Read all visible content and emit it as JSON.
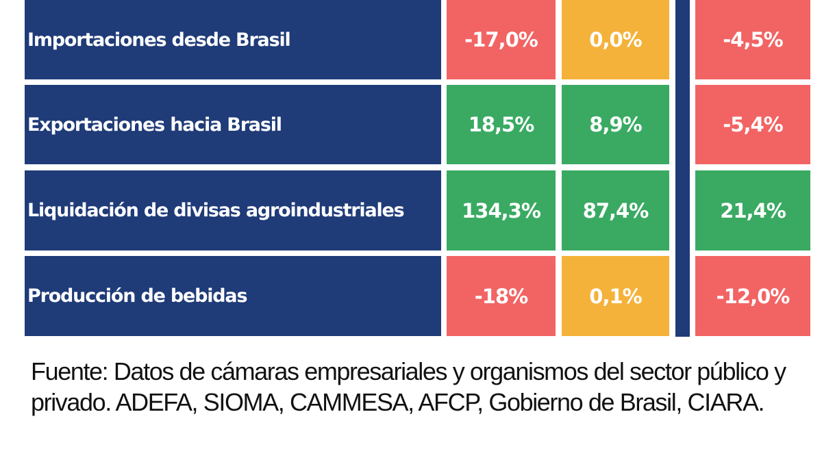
{
  "colors": {
    "row_label_bg": "#1f3b78",
    "separator": "#1f3b78",
    "positive": "#3aaa63",
    "neutral": "#f5b23a",
    "negative": "#f26464"
  },
  "chart_data": {
    "type": "table",
    "rows": [
      {
        "label": "Importaciones desde Brasil",
        "values": [
          "-17,0%",
          "0,0%",
          "-4,5%"
        ],
        "colors": [
          "negative",
          "neutral",
          "negative"
        ]
      },
      {
        "label": "Exportaciones hacia Brasil",
        "values": [
          "18,5%",
          "8,9%",
          "-5,4%"
        ],
        "colors": [
          "positive",
          "positive",
          "negative"
        ]
      },
      {
        "label": "Liquidación de divisas agroindustriales",
        "values": [
          "134,3%",
          "87,4%",
          "21,4%"
        ],
        "colors": [
          "positive",
          "positive",
          "positive"
        ]
      },
      {
        "label": "Producción de bebidas",
        "values": [
          "-18%",
          "0,1%",
          "-12,0%"
        ],
        "colors": [
          "negative",
          "neutral",
          "negative"
        ]
      }
    ]
  },
  "source_text": "Fuente: Datos de cámaras empresariales y organismos del sector público y privado. ADEFA, SIOMA, CAMMESA, AFCP, Gobierno de Brasil, CIARA."
}
